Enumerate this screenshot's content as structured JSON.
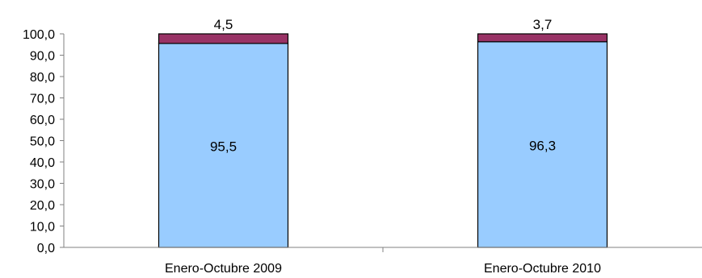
{
  "chart_data": {
    "type": "bar",
    "stacked": true,
    "categories": [
      "Enero-Octubre 2009",
      "Enero-Octubre 2010"
    ],
    "series": [
      {
        "values": [
          95.5,
          96.3
        ],
        "labels": [
          "95,5",
          "96,3"
        ],
        "color": "#99ccff"
      },
      {
        "values": [
          4.5,
          3.7
        ],
        "labels": [
          "4,5",
          "3,7"
        ],
        "color": "#993366"
      }
    ],
    "yticks": [
      "0,0",
      "10,0",
      "20,0",
      "30,0",
      "40,0",
      "50,0",
      "60,0",
      "70,0",
      "80,0",
      "90,0",
      "100,0"
    ],
    "ylim": [
      0,
      100
    ],
    "grid": false,
    "legend": "none"
  }
}
